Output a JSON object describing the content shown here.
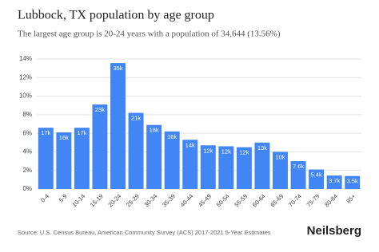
{
  "chart_data": {
    "type": "bar",
    "title": "Lubbock, TX population by age group",
    "subtitle": "The largest age group is 20-24 years with a population of 34,644 (13.56%)",
    "source": "Source: U.S. Census Bureau, American Community Survey (ACS) 2017-2021 5-Year Estimates",
    "brand": "Neilsberg",
    "categories": [
      "0-4",
      "5-9",
      "10-14",
      "15-19",
      "20-24",
      "25-29",
      "30-34",
      "35-39",
      "40-44",
      "45-49",
      "50-54",
      "55-59",
      "60-64",
      "65-69",
      "70-74",
      "75-79",
      "80-84",
      "85+"
    ],
    "values": [
      6.6,
      6.1,
      6.6,
      9.1,
      13.56,
      8.2,
      6.9,
      6.2,
      5.3,
      4.7,
      4.6,
      4.5,
      5.0,
      4.0,
      3.0,
      2.1,
      1.45,
      1.4
    ],
    "bar_labels": [
      "17k",
      "16k",
      "17k",
      "23k",
      "35k",
      "21k",
      "18k",
      "16k",
      "14k",
      "12k",
      "12k",
      "12k",
      "13k",
      "10k",
      "7.6k",
      "5.4k",
      "3.7k",
      "3.5k"
    ],
    "color": "#4285f4",
    "ylim": [
      0,
      14
    ],
    "yticks": [
      {
        "value": 0,
        "label": "0%"
      },
      {
        "value": 2,
        "label": "2%"
      },
      {
        "value": 4,
        "label": "4%"
      },
      {
        "value": 6,
        "label": "6%"
      },
      {
        "value": 8,
        "label": "8%"
      },
      {
        "value": 10,
        "label": "10%"
      },
      {
        "value": 12,
        "label": "12%"
      },
      {
        "value": 14,
        "label": "14%"
      }
    ],
    "grid": true
  }
}
